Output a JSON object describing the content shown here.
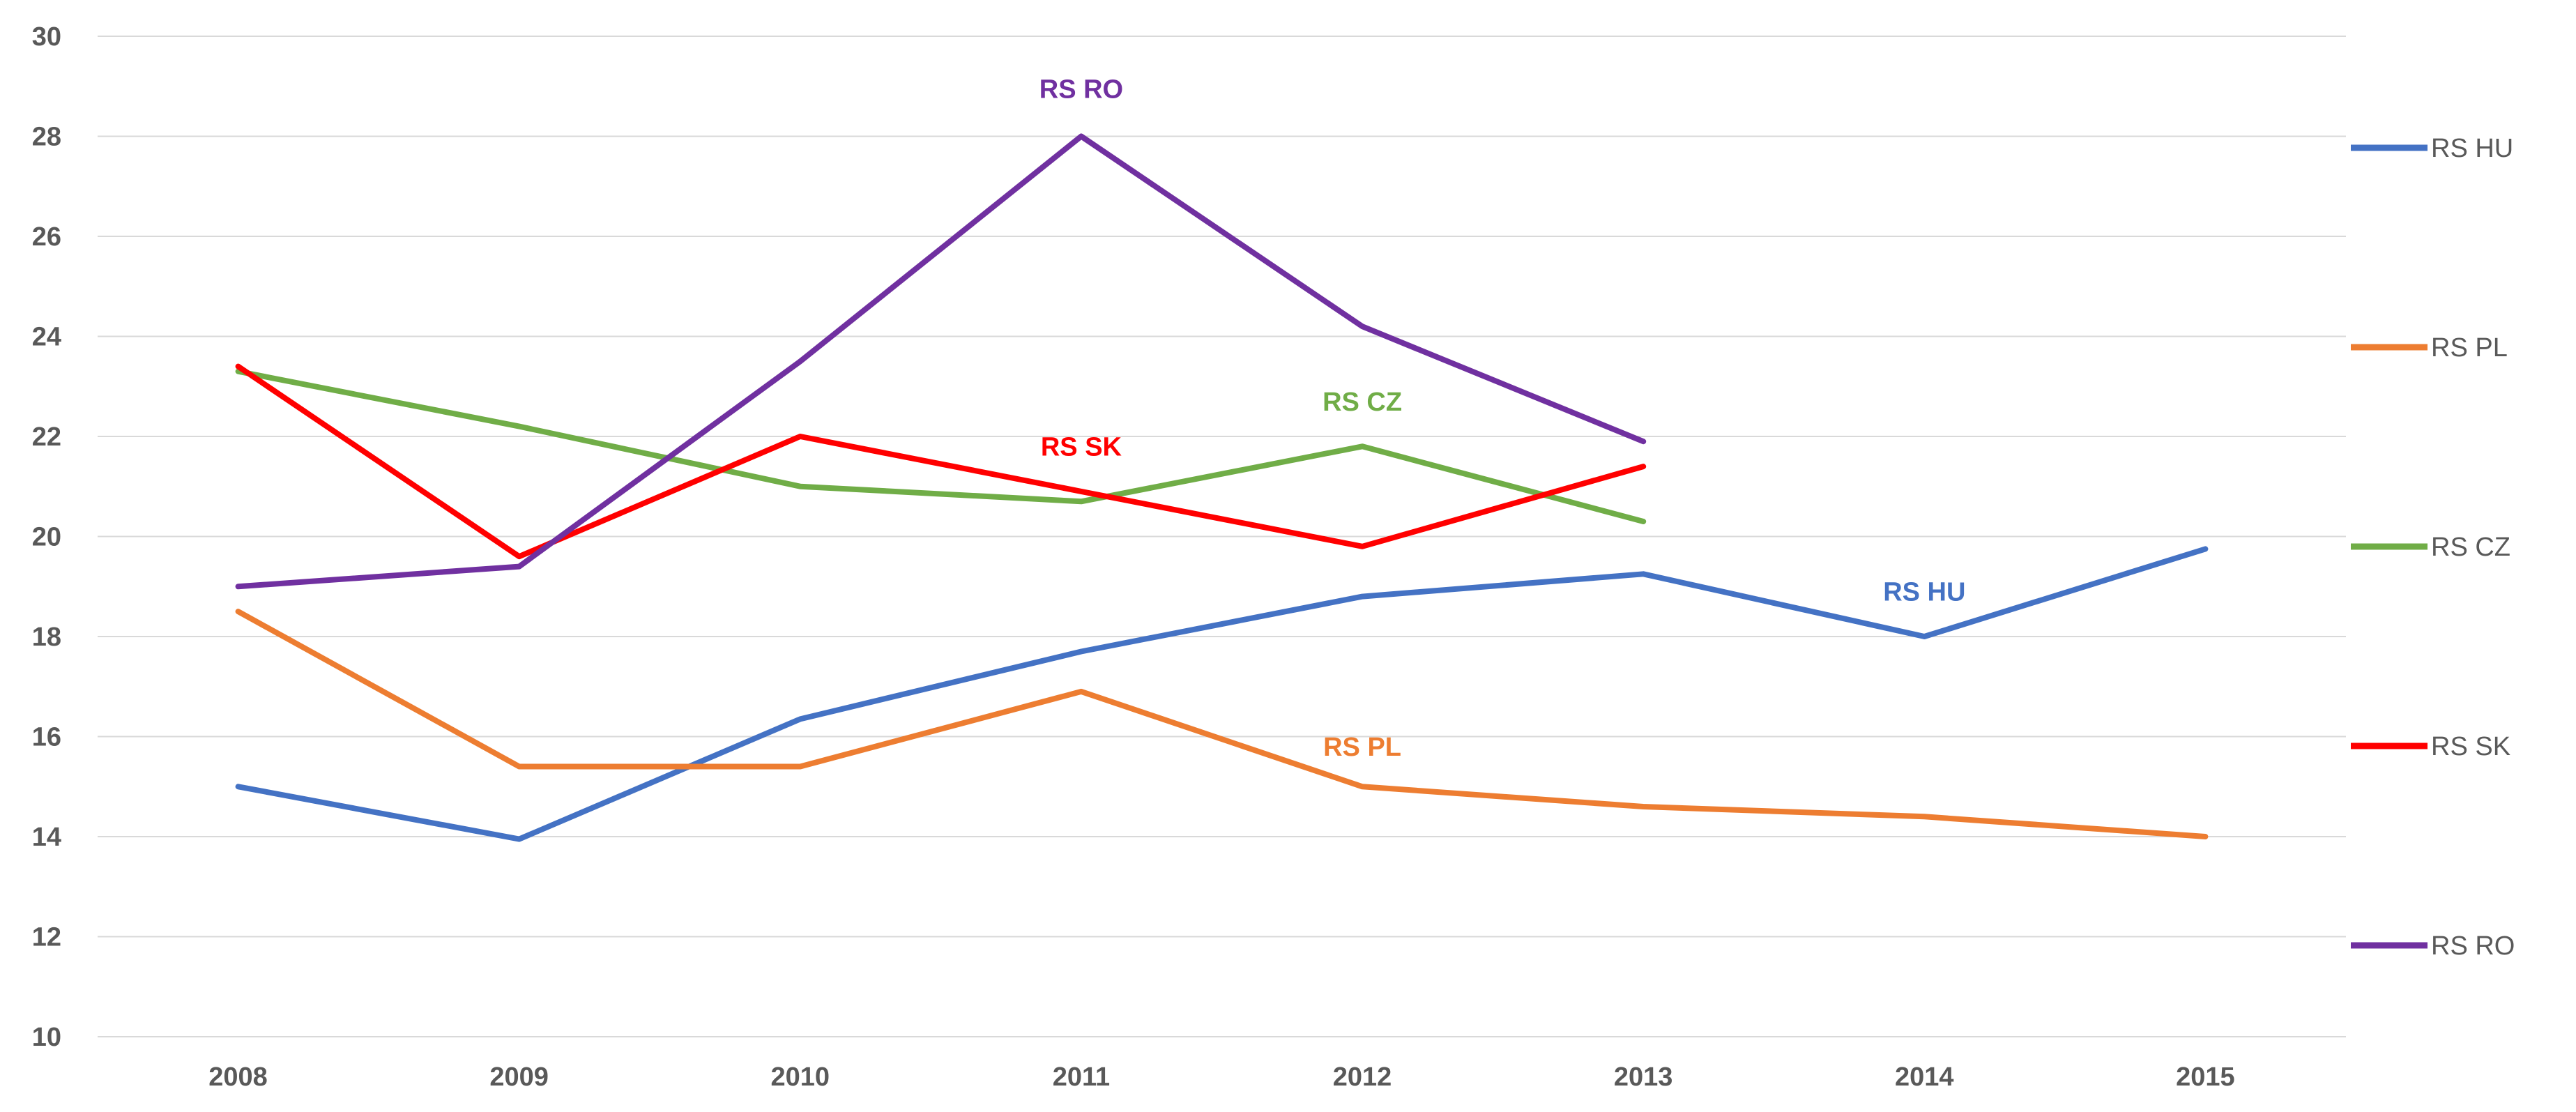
{
  "chart_data": {
    "type": "line",
    "title": "",
    "xlabel": "",
    "ylabel": "",
    "categories": [
      "2008",
      "2009",
      "2010",
      "2011",
      "2012",
      "2013",
      "2014",
      "2015"
    ],
    "ylim": [
      10,
      30
    ],
    "ytick_step": 2,
    "y_ticks": [
      "10",
      "12",
      "14",
      "16",
      "18",
      "20",
      "22",
      "24",
      "26",
      "28",
      "30"
    ],
    "grid": true,
    "legend": "right",
    "series": [
      {
        "name": "RS HU",
        "color": "#4472C4",
        "values": [
          15.0,
          13.95,
          16.35,
          17.7,
          18.8,
          19.25,
          18.0,
          19.75
        ],
        "label": {
          "text": "RS HU",
          "category": "2014",
          "value": 18.9
        }
      },
      {
        "name": "RS PL",
        "color": "#ED7D31",
        "values": [
          18.5,
          15.4,
          15.4,
          16.9,
          15.0,
          14.6,
          14.4,
          14.0
        ],
        "label": {
          "text": "RS PL",
          "category": "2012",
          "value": 15.8
        }
      },
      {
        "name": "RS CZ",
        "color": "#70AD47",
        "values": [
          23.3,
          22.2,
          21.0,
          20.7,
          21.8,
          20.3,
          null,
          null
        ],
        "label": {
          "text": "RS CZ",
          "category": "2012",
          "value": 22.7
        }
      },
      {
        "name": "RS SK",
        "color": "#FF0000",
        "values": [
          23.4,
          19.6,
          22.0,
          20.9,
          19.8,
          21.4,
          null,
          null
        ],
        "label": {
          "text": "RS SK",
          "category": "2011",
          "value": 21.8
        }
      },
      {
        "name": "RS RO",
        "color": "#7030A0",
        "values": [
          19.0,
          19.4,
          23.5,
          28.0,
          24.2,
          21.9,
          null,
          null
        ],
        "label": {
          "text": "RS RO",
          "category": "2011",
          "value": 28.95
        }
      }
    ]
  }
}
